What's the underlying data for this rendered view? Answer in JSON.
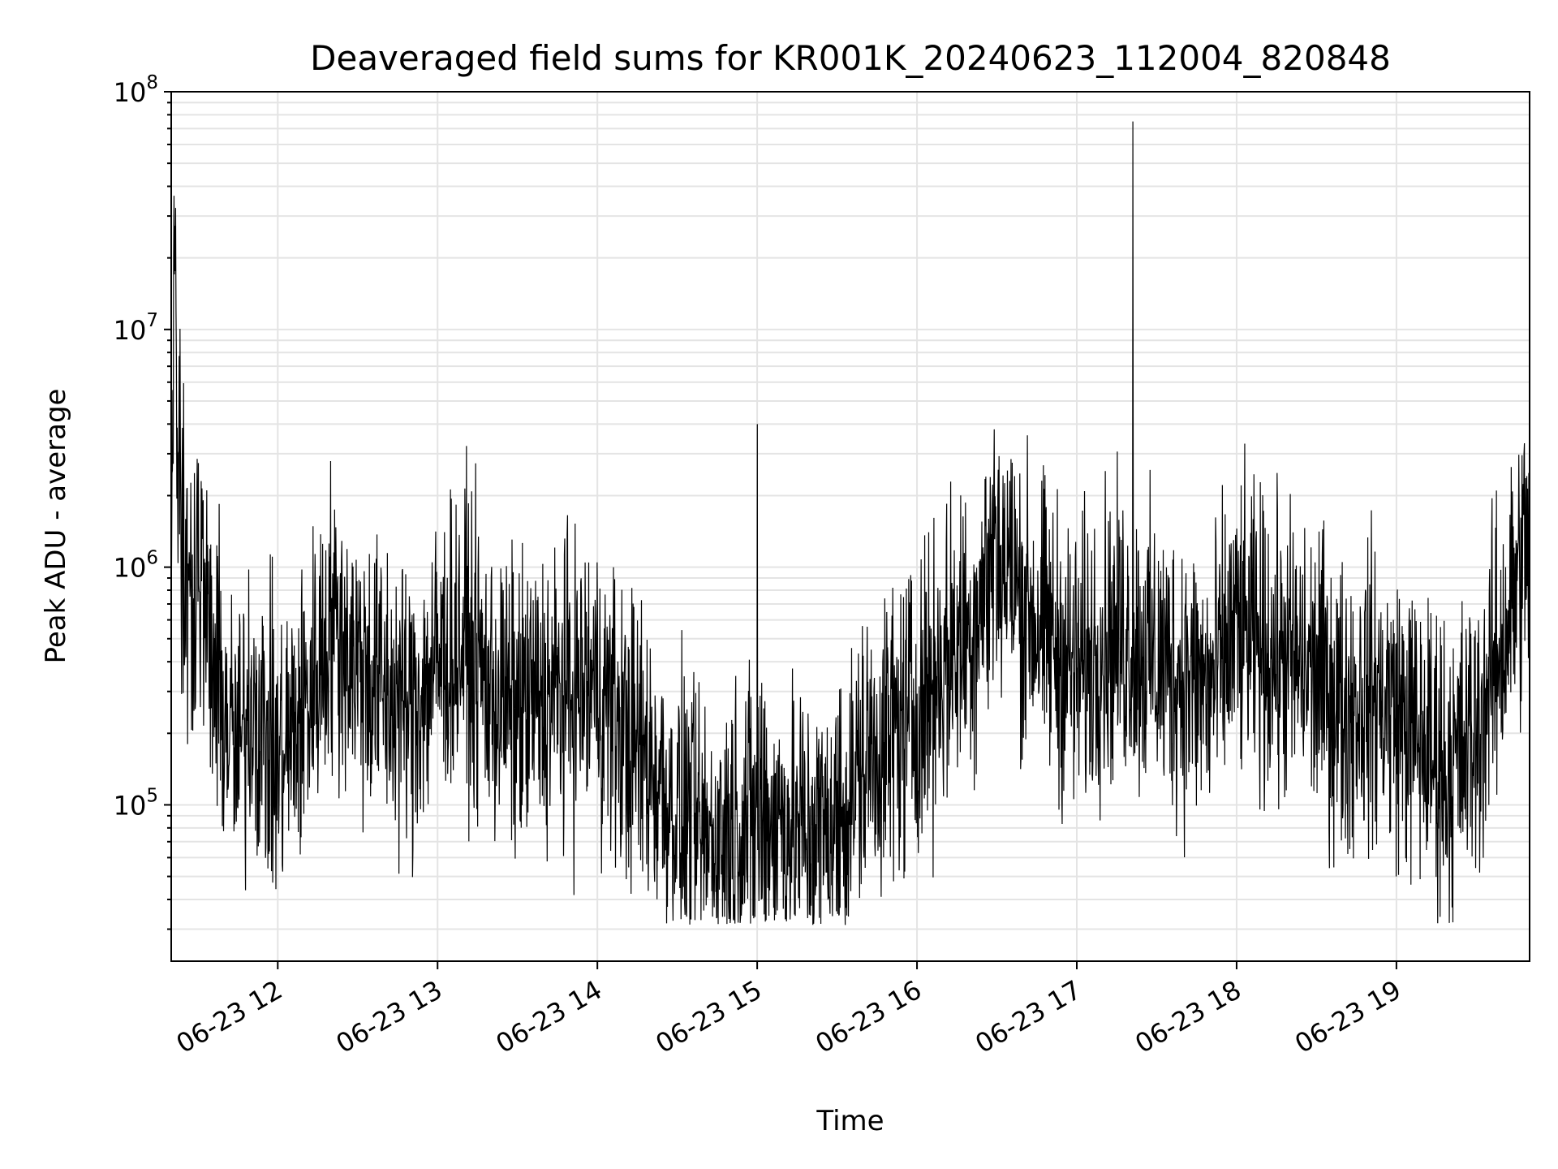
{
  "chart_data": {
    "type": "line",
    "title": "Deaveraged field sums for KR001K_20240623_112004_820848",
    "xlabel": "Time",
    "ylabel": "Peak ADU - average",
    "x_tick_labels": [
      "06-23 12",
      "06-23 13",
      "06-23 14",
      "06-23 15",
      "06-23 16",
      "06-23 17",
      "06-23 18",
      "06-23 19"
    ],
    "y_tick_labels": [
      {
        "base": "10",
        "exp": "5",
        "value": 100000
      },
      {
        "base": "10",
        "exp": "6",
        "value": 1000000
      },
      {
        "base": "10",
        "exp": "7",
        "value": 10000000
      },
      {
        "base": "10",
        "exp": "8",
        "value": 100000000
      }
    ],
    "xlim": [
      "2024-06-23 11:20",
      "2024-06-23 19:50"
    ],
    "ylim": [
      22000,
      100000000
    ],
    "y_scale": "log",
    "grid": true,
    "line_color": "#000000",
    "x": [
      "2024-06-23 11:20",
      "2024-06-23 11:21",
      "2024-06-23 11:23",
      "2024-06-23 11:27",
      "2024-06-23 11:30",
      "2024-06-23 11:35",
      "2024-06-23 11:40",
      "2024-06-23 11:45",
      "2024-06-23 11:50",
      "2024-06-23 11:55",
      "2024-06-23 12:00",
      "2024-06-23 12:10",
      "2024-06-23 12:20",
      "2024-06-23 12:30",
      "2024-06-23 12:40",
      "2024-06-23 12:50",
      "2024-06-23 13:00",
      "2024-06-23 13:10",
      "2024-06-23 13:20",
      "2024-06-23 13:30",
      "2024-06-23 13:40",
      "2024-06-23 13:50",
      "2024-06-23 14:00",
      "2024-06-23 14:10",
      "2024-06-23 14:20",
      "2024-06-23 14:30",
      "2024-06-23 14:40",
      "2024-06-23 14:50",
      "2024-06-23 15:00",
      "2024-06-23 15:10",
      "2024-06-23 15:20",
      "2024-06-23 15:30",
      "2024-06-23 15:40",
      "2024-06-23 15:50",
      "2024-06-23 16:00",
      "2024-06-23 16:10",
      "2024-06-23 16:20",
      "2024-06-23 16:30",
      "2024-06-23 16:40",
      "2024-06-23 16:50",
      "2024-06-23 17:00",
      "2024-06-23 17:10",
      "2024-06-23 17:20",
      "2024-06-23 17:30",
      "2024-06-23 17:40",
      "2024-06-23 17:50",
      "2024-06-23 18:00",
      "2024-06-23 18:10",
      "2024-06-23 18:20",
      "2024-06-23 18:30",
      "2024-06-23 18:40",
      "2024-06-23 18:50",
      "2024-06-23 19:00",
      "2024-06-23 19:10",
      "2024-06-23 19:20",
      "2024-06-23 19:30",
      "2024-06-23 19:40",
      "2024-06-23 19:50"
    ],
    "values": [
      1000000,
      17000000,
      1500000,
      700000,
      1200000,
      400000,
      250000,
      150000,
      300000,
      200000,
      150000,
      250000,
      600000,
      400000,
      300000,
      250000,
      400000,
      500000,
      300000,
      250000,
      280000,
      300000,
      320000,
      200000,
      150000,
      90000,
      70000,
      80000,
      90000,
      85000,
      75000,
      80000,
      150000,
      200000,
      250000,
      400000,
      550000,
      1200000,
      700000,
      500000,
      350000,
      500000,
      500000,
      400000,
      350000,
      300000,
      550000,
      450000,
      400000,
      350000,
      250000,
      300000,
      250000,
      180000,
      140000,
      200000,
      500000,
      1400000
    ],
    "spikes": [
      {
        "x": "2024-06-23 15:00",
        "value": 4000000
      },
      {
        "x": "2024-06-23 17:21",
        "value": 75000000
      },
      {
        "x": "2024-06-23 16:29",
        "value": 3800000
      }
    ]
  }
}
